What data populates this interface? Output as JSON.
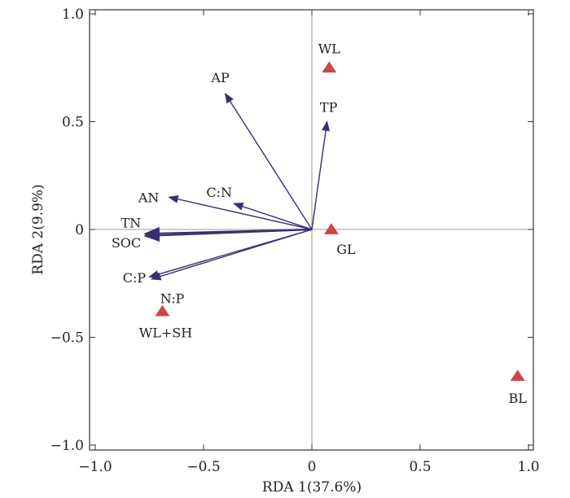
{
  "chart_data": {
    "type": "scatter",
    "subtype": "rda-biplot",
    "title": "",
    "xlabel": "RDA 1(37.6%)",
    "ylabel": "RDA 2(9.9%)",
    "xlim": [
      -1.0,
      1.0
    ],
    "ylim": [
      -1.0,
      1.0
    ],
    "xticks": [
      "-1.0",
      "-0.5",
      "0",
      "0.5",
      "1.0"
    ],
    "yticks": [
      "-1.0",
      "-0.5",
      "0",
      "0.5",
      "1.0"
    ],
    "grid": false,
    "zero_lines": true,
    "arrow_color": "#3a2f6e",
    "site_color": "#d04545",
    "vectors": [
      {
        "name": "AP",
        "x": -0.4,
        "y": 0.63
      },
      {
        "name": "TP",
        "x": 0.07,
        "y": 0.5
      },
      {
        "name": "C:N",
        "x": -0.36,
        "y": 0.12
      },
      {
        "name": "AN",
        "x": -0.66,
        "y": 0.15
      },
      {
        "name": "TN",
        "x": -0.77,
        "y": -0.02
      },
      {
        "name": "SOC",
        "x": -0.77,
        "y": -0.03
      },
      {
        "name": "C:P",
        "x": -0.74,
        "y": -0.23
      },
      {
        "name": "N:P",
        "x": -0.75,
        "y": -0.22
      }
    ],
    "sites": [
      {
        "name": "WL",
        "x": 0.08,
        "y": 0.75
      },
      {
        "name": "GL",
        "x": 0.09,
        "y": 0.0
      },
      {
        "name": "WL+SH",
        "x": -0.69,
        "y": -0.38
      },
      {
        "name": "BL",
        "x": 0.95,
        "y": -0.68
      }
    ]
  }
}
